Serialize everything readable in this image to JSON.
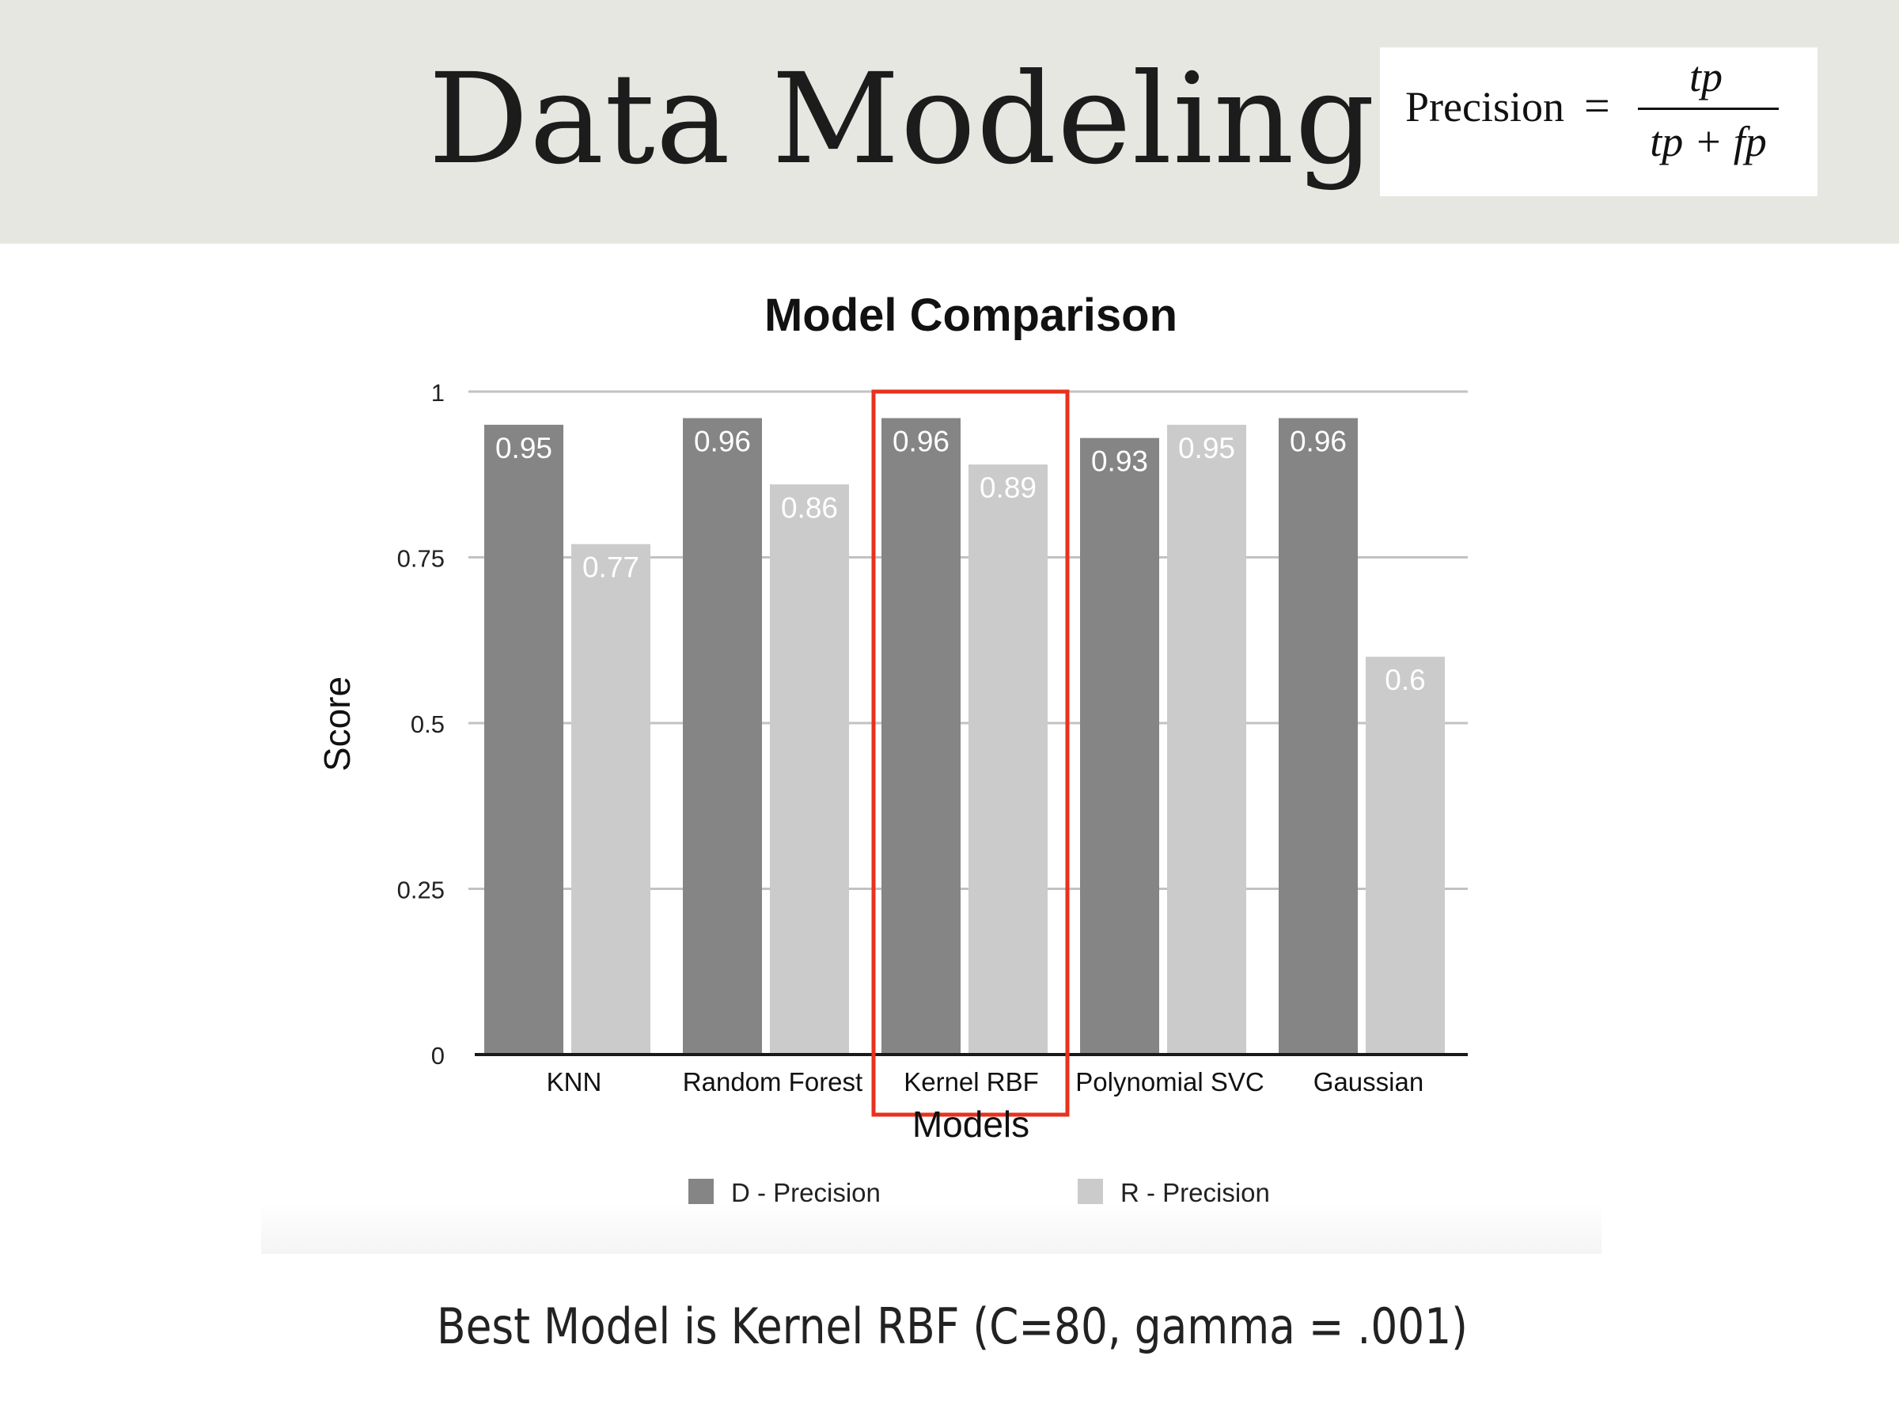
{
  "slide": {
    "title": "Data Modeling",
    "caption": "Best Model is Kernel RBF (C=80, gamma = .001)"
  },
  "formula": {
    "lhs": "Precision",
    "equals": "=",
    "numerator": "tp",
    "denominator": "tp + fp"
  },
  "chart_data": {
    "type": "bar",
    "title": "Model Comparison",
    "xlabel": "Models",
    "ylabel": "Score",
    "categories": [
      "KNN",
      "Random Forest",
      "Kernel RBF",
      "Polynomial SVC",
      "Gaussian"
    ],
    "series": [
      {
        "name": "D - Precision",
        "color": "#858585",
        "values": [
          0.95,
          0.96,
          0.96,
          0.93,
          0.96
        ]
      },
      {
        "name": "R - Precision",
        "color": "#cbcbcb",
        "values": [
          0.77,
          0.86,
          0.89,
          0.95,
          0.6
        ]
      }
    ],
    "ylim": [
      0,
      1
    ],
    "yticks": [
      0,
      0.25,
      0.5,
      0.75,
      1
    ],
    "ytick_labels": [
      "0",
      "0.25",
      "0.5",
      "0.75",
      "1"
    ],
    "grid": true,
    "legend": "bottom",
    "highlight": {
      "category": "Kernel RBF",
      "color": "#e8321e"
    }
  }
}
